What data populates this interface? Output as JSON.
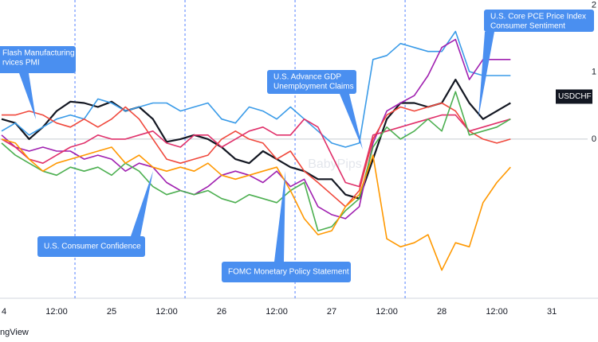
{
  "chart_data": {
    "type": "line",
    "watermark": "BabyPips",
    "attribution": "ngView",
    "x": [
      0,
      3,
      6,
      9,
      12,
      15,
      18,
      21,
      24,
      27,
      30,
      33,
      36,
      39,
      42,
      45,
      48,
      51,
      54,
      57,
      60,
      63,
      66,
      69,
      72,
      75,
      78,
      81,
      84,
      87,
      90,
      93,
      96,
      99,
      102,
      105,
      108,
      111
    ],
    "xlim": [
      -0.35,
      129.2
    ],
    "xticks": [
      {
        "value": 0,
        "label": "4"
      },
      {
        "value": 12,
        "label": "12:00"
      },
      {
        "value": 24,
        "label": "25"
      },
      {
        "value": 36,
        "label": "12:00"
      },
      {
        "value": 48,
        "label": "26"
      },
      {
        "value": 60,
        "label": "12:00"
      },
      {
        "value": 72,
        "label": "27"
      },
      {
        "value": 84,
        "label": "12:00"
      },
      {
        "value": 96,
        "label": "28"
      },
      {
        "value": 108,
        "label": "12:00"
      },
      {
        "value": 120,
        "label": "31"
      }
    ],
    "ylim": [
      -2.38,
      2.08
    ],
    "yticks": [
      2,
      1,
      0
    ],
    "zero_line": true,
    "events": [
      16,
      40,
      64,
      88
    ],
    "annotations": [
      {
        "lines": [
          "Flash Manufacturing",
          "rvices PMI"
        ]
      },
      {
        "lines": [
          "U.S. Consumer Confidence"
        ]
      },
      {
        "lines": [
          "FOMC Monetary Policy Statement"
        ]
      },
      {
        "lines": [
          "U.S. Advance GDP",
          "Unemployment Claims"
        ]
      },
      {
        "lines": [
          "U.S. Core PCE Price Index",
          "Consumer Sentiment"
        ]
      }
    ],
    "series": [
      {
        "name": "USDCHF",
        "color": "#131722",
        "values": [
          0.3,
          0.24,
          0,
          0.18,
          0.42,
          0.56,
          0.54,
          0.48,
          0.56,
          0.42,
          0.48,
          0.3,
          -0.04,
          0,
          0.06,
          0,
          -0.12,
          -0.3,
          -0.36,
          -0.18,
          -0.3,
          -0.42,
          -0.48,
          -0.6,
          -0.6,
          -0.83,
          -0.89,
          -0.3,
          0.3,
          0.54,
          0.54,
          0.48,
          0.54,
          0.89,
          0.54,
          0.3,
          0.42,
          0.54
        ]
      },
      {
        "color": "#3a9be8",
        "values": [
          0.12,
          0.24,
          0.06,
          0.18,
          0.3,
          0.36,
          0.3,
          0.6,
          0.54,
          0.42,
          0.48,
          0.54,
          0.54,
          0.42,
          0.48,
          0.54,
          0.3,
          0.24,
          0.48,
          0.42,
          0.3,
          0.48,
          0.3,
          0.12,
          -0.06,
          -0.12,
          -0.06,
          1.19,
          1.25,
          1.43,
          1.37,
          1.31,
          1.31,
          1.61,
          1.01,
          0.95,
          0.95,
          0.95
        ]
      },
      {
        "color": "#a020b0",
        "values": [
          0.06,
          -0.12,
          -0.18,
          -0.12,
          -0.18,
          -0.18,
          -0.3,
          -0.24,
          -0.3,
          -0.48,
          -0.36,
          -0.42,
          -0.65,
          -0.77,
          -0.83,
          -0.71,
          -0.54,
          -0.48,
          -0.54,
          -0.65,
          -0.48,
          -0.71,
          -0.6,
          -1.01,
          -1.13,
          -1.19,
          -1.01,
          -0.06,
          0.42,
          0.54,
          0.65,
          0.95,
          1.37,
          1.49,
          0.89,
          1.19,
          1.19,
          1.19
        ]
      },
      {
        "color": "#f0483c",
        "values": [
          0.36,
          0.36,
          0.42,
          0.36,
          0.24,
          0.18,
          0.3,
          0.18,
          0.3,
          0.48,
          0.3,
          0,
          -0.3,
          -0.36,
          -0.3,
          -0.24,
          0,
          0.12,
          0,
          -0.06,
          -0.3,
          -0.18,
          -0.48,
          -0.65,
          -0.83,
          -1.01,
          -0.77,
          0,
          0.36,
          0.48,
          0.42,
          0.48,
          0.54,
          0.42,
          0.12,
          0,
          -0.06,
          0
        ]
      },
      {
        "color": "#e0306a",
        "values": [
          0,
          -0.12,
          -0.3,
          -0.36,
          -0.24,
          -0.12,
          -0.06,
          0.06,
          0,
          0,
          0.06,
          0.12,
          -0.06,
          -0.12,
          0.06,
          0.06,
          -0.12,
          0,
          0.12,
          0.18,
          0.06,
          0.06,
          0.3,
          0.18,
          -0.24,
          -0.65,
          -0.71,
          0.06,
          0.12,
          0.18,
          0.24,
          0.3,
          0.36,
          0.36,
          0.12,
          0.18,
          0.24,
          0.3
        ]
      },
      {
        "color": "#4caf50",
        "values": [
          -0.06,
          -0.24,
          -0.36,
          -0.48,
          -0.54,
          -0.42,
          -0.48,
          -0.42,
          -0.54,
          -0.36,
          -0.48,
          -0.71,
          -0.83,
          -0.77,
          -0.83,
          -0.77,
          -0.89,
          -0.95,
          -0.83,
          -0.89,
          -0.95,
          -0.77,
          -0.65,
          -1.37,
          -1.31,
          -1.07,
          -0.89,
          -0.12,
          0.18,
          0,
          0.12,
          0.3,
          0.12,
          0.71,
          0.06,
          0.12,
          0.18,
          0.3
        ]
      },
      {
        "color": "#ff9800",
        "values": [
          0,
          -0.06,
          -0.3,
          -0.48,
          -0.36,
          -0.3,
          -0.24,
          -0.18,
          -0.12,
          -0.36,
          -0.24,
          -0.42,
          -0.48,
          -0.42,
          -0.48,
          -0.36,
          -0.54,
          -0.6,
          -0.54,
          -0.48,
          -0.42,
          -0.77,
          -1.19,
          -1.43,
          -1.37,
          -1.01,
          -0.83,
          -0.24,
          -1.49,
          -1.61,
          -1.55,
          -1.43,
          -1.96,
          -1.55,
          -1.61,
          -0.95,
          -0.65,
          -0.42
        ]
      }
    ]
  }
}
